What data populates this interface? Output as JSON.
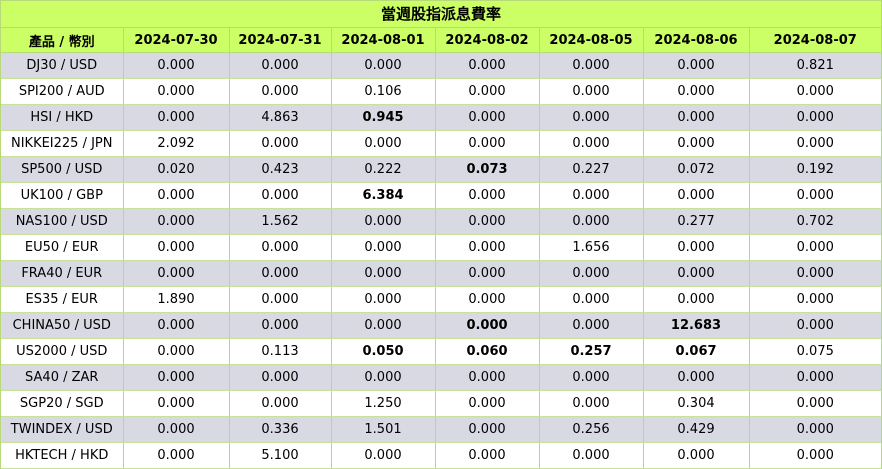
{
  "title": "當週股指派息費率",
  "headers": [
    "產品 / 幣別",
    "2024-07-30",
    "2024-07-31",
    "2024-08-01",
    "2024-08-02",
    "2024-08-05",
    "2024-08-06",
    "2024-08-07"
  ],
  "rows": [
    {
      "product": "DJ30 / USD",
      "values": [
        "0.000",
        "0.000",
        "0.000",
        "0.000",
        "0.000",
        "0.000",
        "0.821"
      ],
      "bold": []
    },
    {
      "product": "SPI200 / AUD",
      "values": [
        "0.000",
        "0.000",
        "0.106",
        "0.000",
        "0.000",
        "0.000",
        "0.000"
      ],
      "bold": []
    },
    {
      "product": "HSI / HKD",
      "values": [
        "0.000",
        "4.863",
        "0.945",
        "0.000",
        "0.000",
        "0.000",
        "0.000"
      ],
      "bold": [
        2
      ]
    },
    {
      "product": "NIKKEI225 / JPN",
      "values": [
        "2.092",
        "0.000",
        "0.000",
        "0.000",
        "0.000",
        "0.000",
        "0.000"
      ],
      "bold": []
    },
    {
      "product": "SP500 / USD",
      "values": [
        "0.020",
        "0.423",
        "0.222",
        "0.073",
        "0.227",
        "0.072",
        "0.192"
      ],
      "bold": [
        3
      ]
    },
    {
      "product": "UK100 / GBP",
      "values": [
        "0.000",
        "0.000",
        "6.384",
        "0.000",
        "0.000",
        "0.000",
        "0.000"
      ],
      "bold": [
        2
      ]
    },
    {
      "product": "NAS100 / USD",
      "values": [
        "0.000",
        "1.562",
        "0.000",
        "0.000",
        "0.000",
        "0.277",
        "0.702"
      ],
      "bold": []
    },
    {
      "product": "EU50 / EUR",
      "values": [
        "0.000",
        "0.000",
        "0.000",
        "0.000",
        "1.656",
        "0.000",
        "0.000"
      ],
      "bold": []
    },
    {
      "product": "FRA40 / EUR",
      "values": [
        "0.000",
        "0.000",
        "0.000",
        "0.000",
        "0.000",
        "0.000",
        "0.000"
      ],
      "bold": []
    },
    {
      "product": "ES35 / EUR",
      "values": [
        "1.890",
        "0.000",
        "0.000",
        "0.000",
        "0.000",
        "0.000",
        "0.000"
      ],
      "bold": []
    },
    {
      "product": "CHINA50 / USD",
      "values": [
        "0.000",
        "0.000",
        "0.000",
        "0.000",
        "0.000",
        "12.683",
        "0.000"
      ],
      "bold": [
        3,
        5
      ]
    },
    {
      "product": "US2000 / USD",
      "values": [
        "0.000",
        "0.113",
        "0.050",
        "0.060",
        "0.257",
        "0.067",
        "0.075"
      ],
      "bold": [
        2,
        3,
        4,
        5
      ]
    },
    {
      "product": "SA40 / ZAR",
      "values": [
        "0.000",
        "0.000",
        "0.000",
        "0.000",
        "0.000",
        "0.000",
        "0.000"
      ],
      "bold": []
    },
    {
      "product": "SGP20 / SGD",
      "values": [
        "0.000",
        "0.000",
        "1.250",
        "0.000",
        "0.000",
        "0.304",
        "0.000"
      ],
      "bold": []
    },
    {
      "product": "TWINDEX / USD",
      "values": [
        "0.000",
        "0.336",
        "1.501",
        "0.000",
        "0.256",
        "0.429",
        "0.000"
      ],
      "bold": []
    },
    {
      "product": "HKTECH / HKD",
      "values": [
        "0.000",
        "5.100",
        "0.000",
        "0.000",
        "0.000",
        "0.000",
        "0.000"
      ],
      "bold": []
    }
  ],
  "colors": {
    "header_bg": "#ccff66",
    "row_alt_bg": "#d9d9e3",
    "row_bg": "#ffffff",
    "border": "#b7d97a"
  }
}
